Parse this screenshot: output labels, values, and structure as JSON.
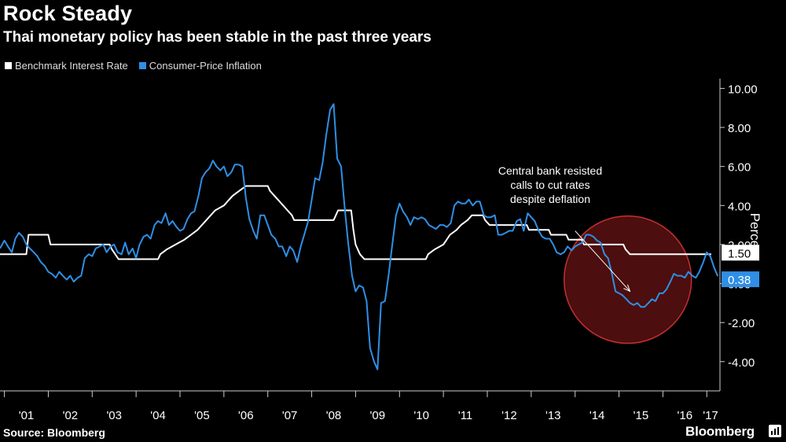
{
  "header": {
    "title": "Rock Steady",
    "subtitle": "Thai monetary policy has been stable in the past three years"
  },
  "footer": {
    "source": "Source: Bloomberg",
    "brand": "Bloomberg"
  },
  "colors": {
    "background": "#000000",
    "benchmark": "#ffffff",
    "inflation": "#2f8fe6",
    "highlight_circle": "#8b1a1a"
  },
  "chart_data": {
    "type": "line",
    "ylabel": "Percent",
    "ylim": [
      -5.5,
      10.5
    ],
    "y_ticks": [
      -4,
      -2,
      0,
      2,
      4,
      6,
      8,
      10
    ],
    "y_tick_labels": [
      "-4.00",
      "-2.00",
      "0.00",
      "2.00",
      "4.00",
      "6.00",
      "8.00",
      "10.00"
    ],
    "xlim": [
      2000.9,
      2017.3
    ],
    "x_tick_labels": [
      "'01",
      "'02",
      "'03",
      "'04",
      "'05",
      "'06",
      "'07",
      "'08",
      "'09",
      "'10",
      "'11",
      "'12",
      "'13",
      "'14",
      "'15",
      "'16",
      "'17"
    ],
    "grid": false,
    "legend_position": "top-left",
    "series": [
      {
        "name": "Benchmark Interest Rate",
        "color": "#ffffff",
        "last_value_label": "1.50",
        "points": [
          [
            2000.9,
            1.5
          ],
          [
            2001.5,
            1.5
          ],
          [
            2001.55,
            2.5
          ],
          [
            2002.0,
            2.5
          ],
          [
            2002.05,
            2.0
          ],
          [
            2003.4,
            2.0
          ],
          [
            2003.45,
            1.75
          ],
          [
            2003.6,
            1.25
          ],
          [
            2004.5,
            1.25
          ],
          [
            2004.55,
            1.5
          ],
          [
            2004.7,
            1.75
          ],
          [
            2004.9,
            2.0
          ],
          [
            2005.1,
            2.25
          ],
          [
            2005.25,
            2.5
          ],
          [
            2005.4,
            2.75
          ],
          [
            2005.5,
            3.0
          ],
          [
            2005.6,
            3.25
          ],
          [
            2005.7,
            3.5
          ],
          [
            2005.8,
            3.75
          ],
          [
            2006.0,
            4.0
          ],
          [
            2006.1,
            4.25
          ],
          [
            2006.2,
            4.5
          ],
          [
            2006.35,
            4.75
          ],
          [
            2006.5,
            5.0
          ],
          [
            2007.0,
            5.0
          ],
          [
            2007.05,
            4.75
          ],
          [
            2007.15,
            4.5
          ],
          [
            2007.25,
            4.25
          ],
          [
            2007.35,
            4.0
          ],
          [
            2007.45,
            3.75
          ],
          [
            2007.55,
            3.5
          ],
          [
            2007.6,
            3.25
          ],
          [
            2008.5,
            3.25
          ],
          [
            2008.55,
            3.5
          ],
          [
            2008.6,
            3.75
          ],
          [
            2008.9,
            3.75
          ],
          [
            2008.95,
            2.75
          ],
          [
            2009.0,
            2.0
          ],
          [
            2009.1,
            1.5
          ],
          [
            2009.2,
            1.25
          ],
          [
            2010.6,
            1.25
          ],
          [
            2010.65,
            1.5
          ],
          [
            2010.8,
            1.75
          ],
          [
            2011.0,
            2.0
          ],
          [
            2011.15,
            2.5
          ],
          [
            2011.3,
            2.75
          ],
          [
            2011.4,
            3.0
          ],
          [
            2011.55,
            3.25
          ],
          [
            2011.65,
            3.5
          ],
          [
            2011.9,
            3.5
          ],
          [
            2011.95,
            3.25
          ],
          [
            2012.05,
            3.0
          ],
          [
            2012.9,
            3.0
          ],
          [
            2012.95,
            2.75
          ],
          [
            2013.4,
            2.75
          ],
          [
            2013.45,
            2.5
          ],
          [
            2013.8,
            2.5
          ],
          [
            2013.85,
            2.25
          ],
          [
            2014.15,
            2.25
          ],
          [
            2014.2,
            2.0
          ],
          [
            2015.1,
            2.0
          ],
          [
            2015.15,
            1.75
          ],
          [
            2015.25,
            1.5
          ],
          [
            2017.1,
            1.5
          ]
        ]
      },
      {
        "name": "Consumer-Price Inflation",
        "color": "#2f8fe6",
        "last_value_label": "0.38",
        "points": [
          [
            2000.9,
            1.8
          ],
          [
            2001.0,
            2.2
          ],
          [
            2001.08,
            1.9
          ],
          [
            2001.17,
            1.6
          ],
          [
            2001.25,
            2.3
          ],
          [
            2001.33,
            2.6
          ],
          [
            2001.42,
            2.4
          ],
          [
            2001.5,
            2.0
          ],
          [
            2001.58,
            1.8
          ],
          [
            2001.67,
            1.6
          ],
          [
            2001.75,
            1.4
          ],
          [
            2001.83,
            1.1
          ],
          [
            2001.92,
            0.9
          ],
          [
            2002.0,
            0.6
          ],
          [
            2002.08,
            0.5
          ],
          [
            2002.17,
            0.3
          ],
          [
            2002.25,
            0.6
          ],
          [
            2002.33,
            0.4
          ],
          [
            2002.42,
            0.2
          ],
          [
            2002.5,
            0.4
          ],
          [
            2002.58,
            0.1
          ],
          [
            2002.67,
            0.3
          ],
          [
            2002.75,
            0.4
          ],
          [
            2002.83,
            1.3
          ],
          [
            2002.92,
            1.5
          ],
          [
            2003.0,
            1.4
          ],
          [
            2003.08,
            1.8
          ],
          [
            2003.17,
            1.9
          ],
          [
            2003.25,
            2.0
          ],
          [
            2003.33,
            1.6
          ],
          [
            2003.42,
            1.9
          ],
          [
            2003.5,
            2.0
          ],
          [
            2003.58,
            1.6
          ],
          [
            2003.67,
            1.5
          ],
          [
            2003.75,
            2.1
          ],
          [
            2003.83,
            1.5
          ],
          [
            2003.92,
            1.8
          ],
          [
            2004.0,
            1.3
          ],
          [
            2004.08,
            2.0
          ],
          [
            2004.17,
            2.4
          ],
          [
            2004.25,
            2.5
          ],
          [
            2004.33,
            2.3
          ],
          [
            2004.42,
            3.0
          ],
          [
            2004.5,
            3.2
          ],
          [
            2004.58,
            3.1
          ],
          [
            2004.67,
            3.6
          ],
          [
            2004.75,
            3.0
          ],
          [
            2004.83,
            3.2
          ],
          [
            2004.92,
            2.9
          ],
          [
            2005.0,
            2.7
          ],
          [
            2005.08,
            2.8
          ],
          [
            2005.17,
            3.3
          ],
          [
            2005.25,
            3.6
          ],
          [
            2005.33,
            3.7
          ],
          [
            2005.42,
            4.5
          ],
          [
            2005.5,
            5.4
          ],
          [
            2005.58,
            5.7
          ],
          [
            2005.67,
            5.9
          ],
          [
            2005.75,
            6.3
          ],
          [
            2005.83,
            6.0
          ],
          [
            2005.92,
            5.8
          ],
          [
            2006.0,
            6.0
          ],
          [
            2006.08,
            5.5
          ],
          [
            2006.17,
            5.7
          ],
          [
            2006.25,
            6.1
          ],
          [
            2006.33,
            6.1
          ],
          [
            2006.42,
            6.0
          ],
          [
            2006.5,
            4.4
          ],
          [
            2006.58,
            3.3
          ],
          [
            2006.67,
            2.7
          ],
          [
            2006.75,
            2.3
          ],
          [
            2006.83,
            3.5
          ],
          [
            2006.92,
            3.5
          ],
          [
            2007.0,
            3.0
          ],
          [
            2007.08,
            2.5
          ],
          [
            2007.17,
            2.3
          ],
          [
            2007.25,
            1.9
          ],
          [
            2007.33,
            1.9
          ],
          [
            2007.42,
            1.4
          ],
          [
            2007.5,
            1.9
          ],
          [
            2007.58,
            1.7
          ],
          [
            2007.67,
            1.1
          ],
          [
            2007.75,
            1.9
          ],
          [
            2007.83,
            2.5
          ],
          [
            2007.92,
            3.2
          ],
          [
            2008.0,
            4.3
          ],
          [
            2008.08,
            5.4
          ],
          [
            2008.17,
            5.3
          ],
          [
            2008.25,
            6.2
          ],
          [
            2008.33,
            7.6
          ],
          [
            2008.42,
            8.9
          ],
          [
            2008.5,
            9.2
          ],
          [
            2008.58,
            6.4
          ],
          [
            2008.67,
            6.0
          ],
          [
            2008.75,
            3.9
          ],
          [
            2008.83,
            2.1
          ],
          [
            2008.92,
            0.4
          ],
          [
            2009.0,
            -0.4
          ],
          [
            2009.08,
            -0.1
          ],
          [
            2009.17,
            -0.2
          ],
          [
            2009.25,
            -0.9
          ],
          [
            2009.33,
            -3.3
          ],
          [
            2009.42,
            -4.0
          ],
          [
            2009.5,
            -4.4
          ],
          [
            2009.58,
            -1.0
          ],
          [
            2009.67,
            -0.9
          ],
          [
            2009.75,
            0.4
          ],
          [
            2009.83,
            1.9
          ],
          [
            2009.92,
            3.5
          ],
          [
            2010.0,
            4.1
          ],
          [
            2010.08,
            3.7
          ],
          [
            2010.17,
            3.4
          ],
          [
            2010.25,
            3.0
          ],
          [
            2010.33,
            3.4
          ],
          [
            2010.42,
            3.3
          ],
          [
            2010.5,
            3.4
          ],
          [
            2010.58,
            3.3
          ],
          [
            2010.67,
            3.0
          ],
          [
            2010.75,
            2.9
          ],
          [
            2010.83,
            2.8
          ],
          [
            2010.92,
            3.0
          ],
          [
            2011.0,
            3.0
          ],
          [
            2011.08,
            2.9
          ],
          [
            2011.17,
            3.1
          ],
          [
            2011.25,
            4.0
          ],
          [
            2011.33,
            4.2
          ],
          [
            2011.42,
            4.1
          ],
          [
            2011.5,
            4.1
          ],
          [
            2011.58,
            4.3
          ],
          [
            2011.67,
            4.0
          ],
          [
            2011.75,
            4.2
          ],
          [
            2011.83,
            4.2
          ],
          [
            2011.92,
            3.5
          ],
          [
            2012.0,
            3.4
          ],
          [
            2012.08,
            3.4
          ],
          [
            2012.17,
            3.5
          ],
          [
            2012.25,
            2.5
          ],
          [
            2012.33,
            2.5
          ],
          [
            2012.42,
            2.6
          ],
          [
            2012.5,
            2.7
          ],
          [
            2012.58,
            2.7
          ],
          [
            2012.67,
            3.2
          ],
          [
            2012.75,
            3.3
          ],
          [
            2012.83,
            2.7
          ],
          [
            2012.92,
            3.6
          ],
          [
            2013.0,
            3.4
          ],
          [
            2013.08,
            3.2
          ],
          [
            2013.17,
            2.7
          ],
          [
            2013.25,
            2.4
          ],
          [
            2013.33,
            2.3
          ],
          [
            2013.42,
            2.3
          ],
          [
            2013.5,
            2.0
          ],
          [
            2013.58,
            1.6
          ],
          [
            2013.67,
            1.5
          ],
          [
            2013.75,
            1.6
          ],
          [
            2013.83,
            1.9
          ],
          [
            2013.92,
            1.7
          ],
          [
            2014.0,
            1.9
          ],
          [
            2014.08,
            2.0
          ],
          [
            2014.17,
            2.1
          ],
          [
            2014.25,
            2.5
          ],
          [
            2014.33,
            2.5
          ],
          [
            2014.42,
            2.4
          ],
          [
            2014.5,
            2.2
          ],
          [
            2014.58,
            2.1
          ],
          [
            2014.67,
            1.5
          ],
          [
            2014.75,
            1.3
          ],
          [
            2014.83,
            0.6
          ],
          [
            2014.92,
            -0.4
          ],
          [
            2015.0,
            -0.5
          ],
          [
            2015.08,
            -0.6
          ],
          [
            2015.17,
            -0.8
          ],
          [
            2015.25,
            -1.0
          ],
          [
            2015.33,
            -1.1
          ],
          [
            2015.42,
            -1.0
          ],
          [
            2015.5,
            -1.2
          ],
          [
            2015.58,
            -1.2
          ],
          [
            2015.67,
            -1.0
          ],
          [
            2015.75,
            -0.8
          ],
          [
            2015.83,
            -0.9
          ],
          [
            2015.92,
            -0.5
          ],
          [
            2016.0,
            -0.5
          ],
          [
            2016.08,
            -0.3
          ],
          [
            2016.17,
            0.1
          ],
          [
            2016.25,
            0.5
          ],
          [
            2016.33,
            0.4
          ],
          [
            2016.42,
            0.4
          ],
          [
            2016.5,
            0.3
          ],
          [
            2016.58,
            0.6
          ],
          [
            2016.67,
            0.4
          ],
          [
            2016.75,
            0.3
          ],
          [
            2016.83,
            0.6
          ],
          [
            2016.92,
            1.1
          ],
          [
            2017.0,
            1.6
          ],
          [
            2017.08,
            1.4
          ],
          [
            2017.17,
            0.8
          ],
          [
            2017.25,
            0.38
          ]
        ]
      }
    ],
    "annotation": {
      "text_lines": [
        "Central bank resisted",
        "calls to cut rates",
        "despite deflation"
      ],
      "arrow_from": [
        2014.0,
        2.7
      ],
      "arrow_to": [
        2015.25,
        -0.4
      ],
      "circle_center": [
        2015.2,
        0.2
      ],
      "circle_radius_years": 1.45
    }
  }
}
